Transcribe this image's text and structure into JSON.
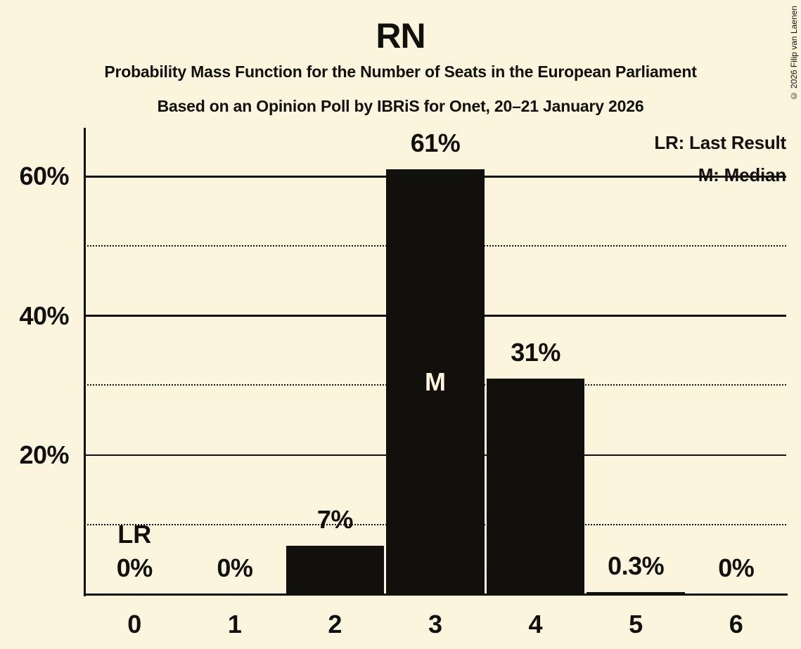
{
  "page": {
    "title": "RN",
    "subtitle": "Probability Mass Function for the Number of Seats in the European Parliament",
    "poll_line": "Based on an Opinion Poll by IBRiS for Onet, 20–21 January 2026",
    "copyright": "© 2026 Filip van Laenen"
  },
  "legend": {
    "last_result": "LR: Last Result",
    "median": "M: Median"
  },
  "colors": {
    "background": "#FAF5DC",
    "ink": "#12100C",
    "bar": "#12100C",
    "label_inside_bar": "#FAF5DC"
  },
  "chart_data": {
    "type": "bar",
    "title": "RN",
    "categories": [
      "0",
      "1",
      "2",
      "3",
      "4",
      "5",
      "6"
    ],
    "values": [
      0,
      0,
      7,
      61,
      31,
      0.3,
      0
    ],
    "bar_labels": [
      "0%",
      "0%",
      "7%",
      "61%",
      "31%",
      "0.3%",
      "0%"
    ],
    "xlabel": "",
    "ylabel": "",
    "ylim": [
      0,
      67
    ],
    "ytick_values": [
      20,
      40,
      60
    ],
    "ytick_labels": [
      "20%",
      "40%",
      "60%"
    ],
    "solid_gridlines": [
      20,
      40,
      60
    ],
    "dotted_gridlines": [
      10,
      30,
      50
    ],
    "grid_on": true,
    "legend_position": "top-right",
    "annotations": [
      {
        "category_index": 0,
        "label": "LR",
        "position": "above-value-label"
      },
      {
        "category_index": 3,
        "label": "M",
        "position": "inside-bar-middle"
      }
    ]
  }
}
